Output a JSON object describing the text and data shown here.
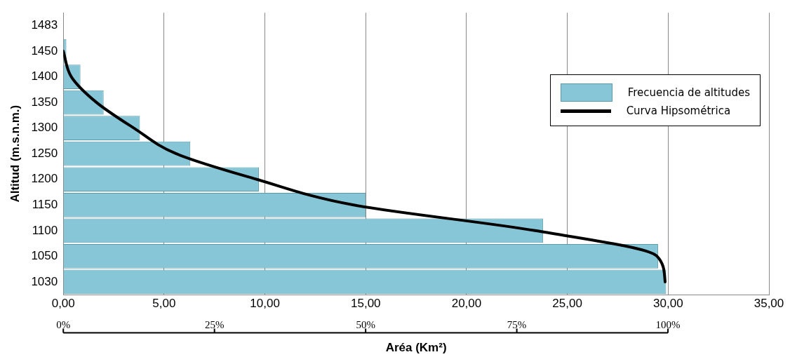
{
  "chart_data": {
    "type": "bar",
    "orientation": "horizontal",
    "xlabel": "Aréa (Km²)",
    "ylabel": "Altitud (m.s.n.m.)",
    "categories": [
      "1483",
      "1450",
      "1400",
      "1350",
      "1300",
      "1250",
      "1200",
      "1150",
      "1100",
      "1050",
      "1030"
    ],
    "series": [
      {
        "name": "Frecuencia de altitudes",
        "color": "#86c6d6",
        "values": [
          0,
          0.15,
          0.85,
          2.0,
          3.8,
          6.3,
          9.7,
          15.0,
          23.8,
          29.5,
          29.9
        ]
      },
      {
        "name": "Curva Hipsométrica",
        "type": "line",
        "color": "#000000",
        "values": [
          null,
          0.0,
          0.4,
          1.65,
          3.5,
          5.6,
          9.6,
          14.4,
          23.4,
          29.45,
          29.85
        ]
      }
    ],
    "xlim": [
      0,
      35
    ],
    "xticks": [
      {
        "value": 0,
        "label": "0,00"
      },
      {
        "value": 5,
        "label": "5,00"
      },
      {
        "value": 10,
        "label": "10,00"
      },
      {
        "value": 15,
        "label": "15,00"
      },
      {
        "value": 20,
        "label": "20,00"
      },
      {
        "value": 25,
        "label": "25,00"
      },
      {
        "value": 30,
        "label": "30,00"
      },
      {
        "value": 35,
        "label": "35,00"
      }
    ],
    "x2lim": [
      0,
      116.7
    ],
    "x2ticks": [
      {
        "value": 0,
        "label": "0%"
      },
      {
        "value": 25,
        "label": "25%"
      },
      {
        "value": 50,
        "label": "50%"
      },
      {
        "value": 75,
        "label": "75%"
      },
      {
        "value": 100,
        "label": "100%"
      }
    ],
    "grid": "x",
    "legend": "top right"
  }
}
